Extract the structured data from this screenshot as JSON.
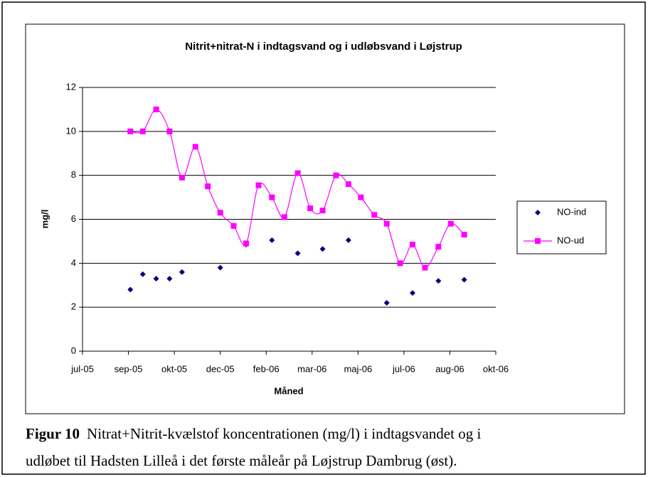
{
  "chart_data": {
    "type": "scatter",
    "title": "Nitrit+nitrat-N i indtagsvand og i udløbsvand i Løjstrup",
    "x_label": "Måned",
    "y_label": "mg/l",
    "x": [
      38614,
      38627,
      38641,
      38655,
      38668,
      38682,
      38695,
      38708,
      38722,
      38735,
      38748,
      38762,
      38775,
      38789,
      38802,
      38815,
      38829,
      38842,
      38855,
      38869,
      38882,
      38896,
      38909,
      38922,
      38936,
      38949,
      38963
    ],
    "series": [
      {
        "name": "NO-ind",
        "color": "#000080",
        "marker": "diamond",
        "line": false,
        "values": [
          2.8,
          3.5,
          3.3,
          3.3,
          3.6,
          null,
          null,
          3.8,
          null,
          4.85,
          null,
          5.05,
          null,
          4.45,
          null,
          4.65,
          null,
          5.05,
          null,
          null,
          2.2,
          null,
          2.65,
          null,
          3.2,
          null,
          3.25
        ]
      },
      {
        "name": "NO-ud",
        "color": "#ff00ff",
        "marker": "square",
        "line": true,
        "smooth": true,
        "values": [
          10,
          10,
          11,
          10,
          7.9,
          9.3,
          7.5,
          6.3,
          5.7,
          4.9,
          7.55,
          7,
          6.1,
          8.1,
          6.5,
          6.4,
          8,
          7.6,
          7,
          6.2,
          5.8,
          4,
          4.85,
          3.8,
          4.75,
          5.8,
          5.3
        ]
      }
    ],
    "xlim": [
      38564,
      38996
    ],
    "xticks": [
      {
        "value": 38564,
        "label": "jul-05"
      },
      {
        "value": 38612,
        "label": "sep-05"
      },
      {
        "value": 38660,
        "label": "okt-05"
      },
      {
        "value": 38708,
        "label": "dec-05"
      },
      {
        "value": 38756,
        "label": "feb-06"
      },
      {
        "value": 38804,
        "label": "mar-06"
      },
      {
        "value": 38852,
        "label": "maj-06"
      },
      {
        "value": 38900,
        "label": "jul-06"
      },
      {
        "value": 38948,
        "label": "aug-06"
      },
      {
        "value": 38996,
        "label": "okt-06"
      }
    ],
    "ylim": [
      0,
      12
    ],
    "yticks": [
      0,
      2,
      4,
      6,
      8,
      10,
      12
    ],
    "grid": true,
    "legend": "right"
  },
  "caption": {
    "label": "Figur 10",
    "lines": [
      "Nitrat+Nitrit-kvælstof koncentrationen (mg/l) i indtagsvandet og i",
      "udløbet til Hadsten Lilleå i det første måleår på Løjstrup Dambrug (øst)."
    ]
  }
}
